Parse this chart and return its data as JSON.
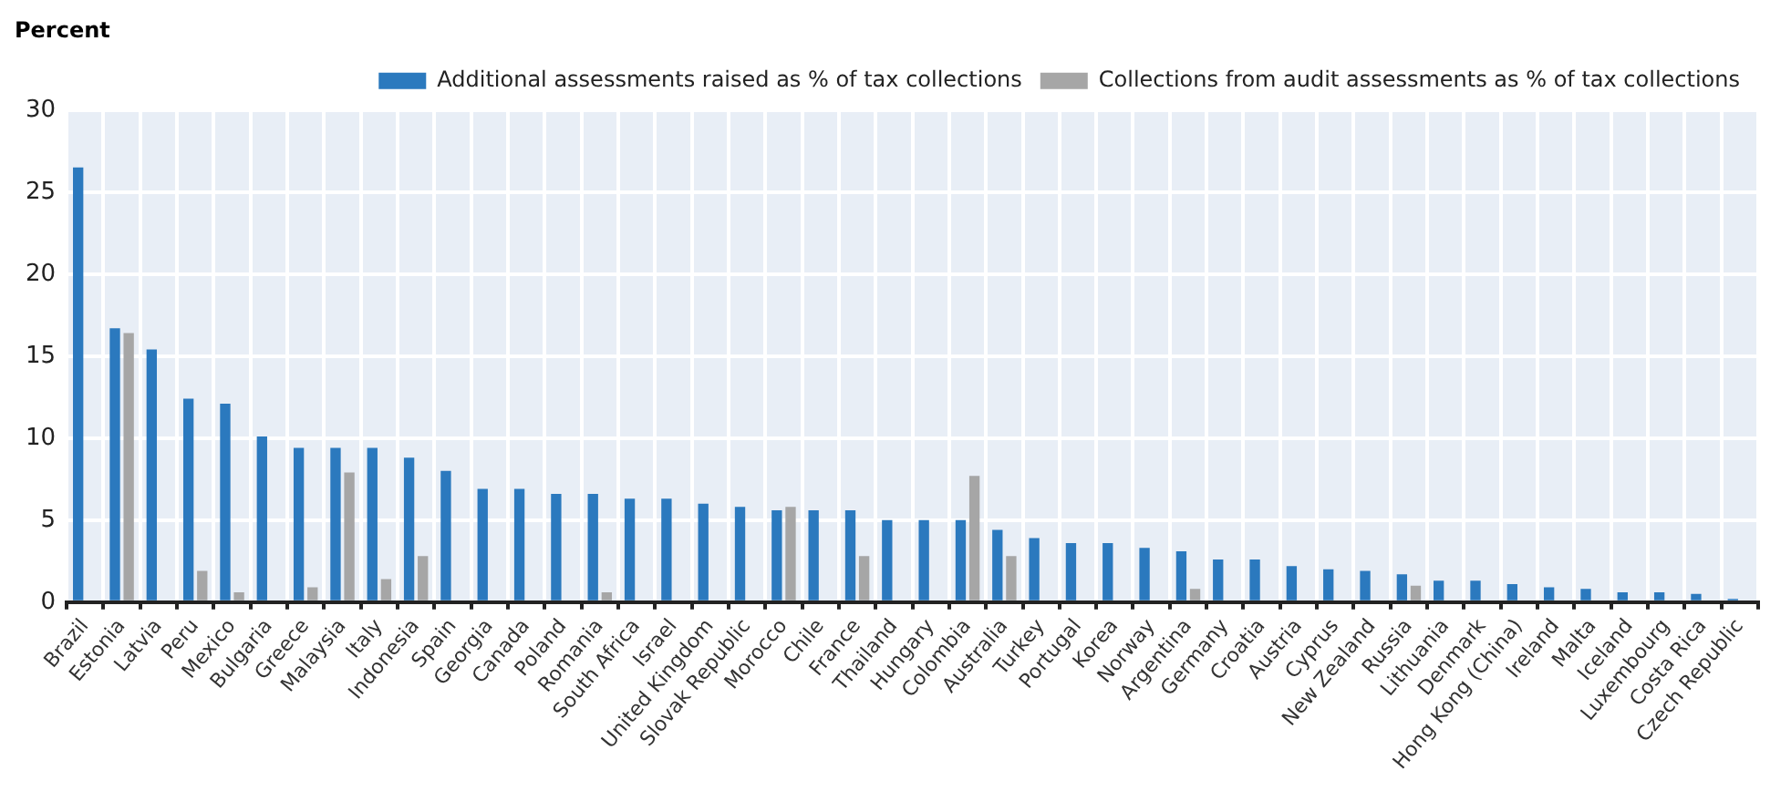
{
  "chart_data": {
    "type": "bar",
    "ylabel": "Percent",
    "categories": [
      "Brazil",
      "Estonia",
      "Latvia",
      "Peru",
      "Mexico",
      "Bulgaria",
      "Greece",
      "Malaysia",
      "Italy",
      "Indonesia",
      "Spain",
      "Georgia",
      "Canada",
      "Poland",
      "Romania",
      "South Africa",
      "Israel",
      "United Kingdom",
      "Slovak Republic",
      "Morocco",
      "Chile",
      "France",
      "Thailand",
      "Hungary",
      "Colombia",
      "Australia",
      "Turkey",
      "Portugal",
      "Korea",
      "Norway",
      "Argentina",
      "Germany",
      "Croatia",
      "Austria",
      "Cyprus",
      "New Zealand",
      "Russia",
      "Lithuania",
      "Denmark",
      "Hong Kong (China)",
      "Ireland",
      "Malta",
      "Iceland",
      "Luxembourg",
      "Costa Rica",
      "Czech Republic"
    ],
    "series": [
      {
        "name": "Additional assessments raised as % of tax collections",
        "color": "#2b79be",
        "values": [
          26.5,
          16.7,
          15.4,
          12.4,
          12.1,
          10.1,
          9.4,
          9.4,
          9.4,
          8.8,
          8.0,
          6.9,
          6.9,
          6.6,
          6.6,
          6.3,
          6.3,
          6.0,
          5.8,
          5.6,
          5.6,
          5.6,
          5.0,
          5.0,
          5.0,
          4.4,
          3.9,
          3.6,
          3.6,
          3.3,
          3.1,
          2.6,
          2.6,
          2.2,
          2.0,
          1.9,
          1.7,
          1.3,
          1.3,
          1.1,
          0.9,
          0.8,
          0.6,
          0.6,
          0.5,
          0.2
        ]
      },
      {
        "name": "Collections from audit assessments as % of tax collections",
        "color": "#a6a6a6",
        "values": [
          null,
          16.4,
          null,
          1.9,
          0.6,
          null,
          0.9,
          7.9,
          1.4,
          2.8,
          null,
          null,
          null,
          null,
          0.6,
          null,
          null,
          null,
          null,
          5.8,
          null,
          2.8,
          null,
          null,
          7.7,
          2.8,
          null,
          null,
          null,
          null,
          0.8,
          null,
          null,
          null,
          null,
          null,
          1.0,
          null,
          null,
          null,
          null,
          null,
          null,
          null,
          null,
          null
        ]
      }
    ],
    "ylim": [
      0,
      30
    ],
    "yticks": [
      0,
      5,
      10,
      15,
      20,
      25,
      30
    ],
    "grid": true,
    "legend": "top"
  }
}
